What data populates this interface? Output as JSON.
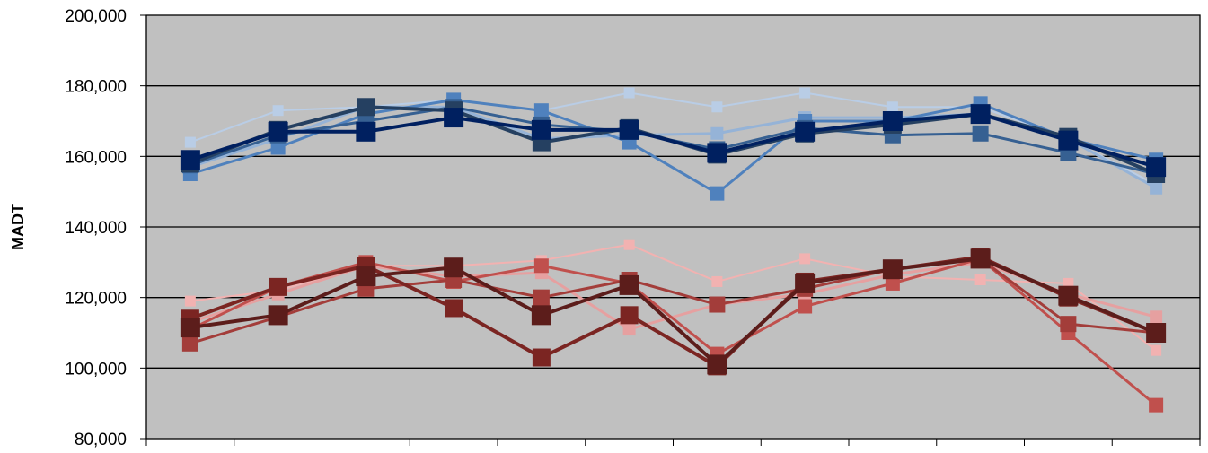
{
  "chart_data": {
    "type": "line",
    "title": "",
    "xlabel": "",
    "ylabel": "MADT",
    "ylim": [
      80000,
      200000
    ],
    "yticks": [
      80000,
      100000,
      120000,
      140000,
      160000,
      180000,
      200000
    ],
    "ytick_labels": [
      "80,000",
      "100,000",
      "120,000",
      "140,000",
      "160,000",
      "180,000",
      "200,000"
    ],
    "x": [
      1,
      2,
      3,
      4,
      5,
      6,
      7,
      8,
      9,
      10,
      11,
      12
    ],
    "grid": true,
    "legend": "none",
    "plot_background": "#c0c0c0",
    "series": [
      {
        "color": "#b9cde6",
        "width": 2,
        "marker": 12,
        "values": [
          164000,
          173000,
          174000,
          176000,
          173000,
          178000,
          174000,
          178000,
          174000,
          174000,
          165000,
          152000
        ]
      },
      {
        "color": "#95b3d7",
        "width": 3,
        "marker": 14,
        "values": [
          157000,
          165000,
          174000,
          174000,
          165000,
          166000,
          166500,
          171000,
          171000,
          172000,
          165000,
          151000
        ]
      },
      {
        "color": "#4f81bd",
        "width": 3,
        "marker": 16,
        "values": [
          155000,
          162500,
          172000,
          176000,
          173000,
          164000,
          149500,
          170000,
          170000,
          175000,
          165000,
          159000
        ]
      },
      {
        "color": "#366092",
        "width": 3,
        "marker": 18,
        "values": [
          157500,
          166000,
          170000,
          174000,
          169000,
          167000,
          162000,
          168000,
          166000,
          166500,
          161000,
          155000
        ]
      },
      {
        "color": "#254061",
        "width": 4,
        "marker": 20,
        "values": [
          158000,
          167500,
          174000,
          173000,
          164000,
          168000,
          160500,
          166500,
          169000,
          172000,
          165500,
          155000
        ]
      },
      {
        "color": "#002060",
        "width": 4,
        "marker": 22,
        "values": [
          159000,
          167000,
          167000,
          171000,
          167500,
          167500,
          161000,
          167000,
          170000,
          172000,
          164500,
          157000
        ]
      },
      {
        "color": "#f2b2b1",
        "width": 2,
        "marker": 12,
        "values": [
          119000,
          122000,
          129000,
          129000,
          130500,
          135000,
          124500,
          131000,
          126000,
          125000,
          124000,
          105000
        ]
      },
      {
        "color": "#e6a0a0",
        "width": 3,
        "marker": 14,
        "values": [
          113000,
          121000,
          129000,
          126000,
          127000,
          111000,
          118000,
          121000,
          126500,
          130000,
          121000,
          114500
        ]
      },
      {
        "color": "#c0504d",
        "width": 3,
        "marker": 16,
        "values": [
          111000,
          123000,
          130000,
          124500,
          129000,
          124000,
          104000,
          117500,
          124000,
          131000,
          110000,
          89500
        ]
      },
      {
        "color": "#a33d3a",
        "width": 3,
        "marker": 18,
        "values": [
          107000,
          114500,
          122500,
          125000,
          120000,
          125000,
          118000,
          122500,
          128000,
          131000,
          112500,
          110000
        ]
      },
      {
        "color": "#7b2522",
        "width": 4,
        "marker": 20,
        "values": [
          114000,
          123000,
          129000,
          117000,
          103000,
          115000,
          100500,
          124500,
          128000,
          131500,
          120000,
          110000
        ]
      },
      {
        "color": "#5c1d1b",
        "width": 4,
        "marker": 22,
        "values": [
          111500,
          115000,
          126000,
          128500,
          115000,
          123500,
          101000,
          124000,
          128000,
          131000,
          120500,
          110000
        ]
      }
    ]
  }
}
